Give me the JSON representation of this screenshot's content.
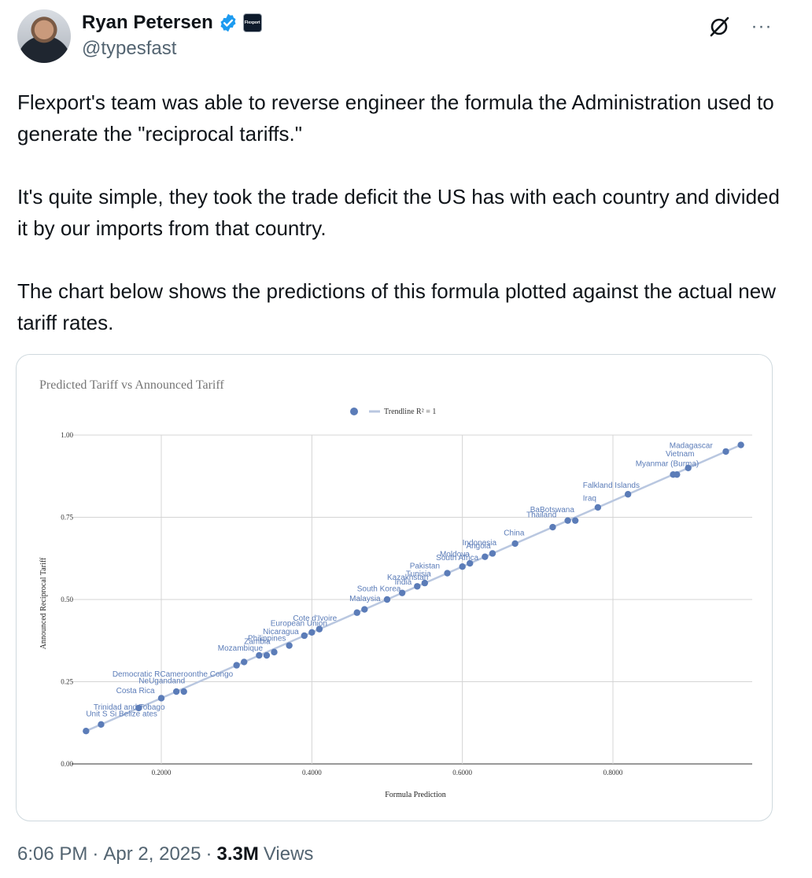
{
  "author": {
    "display_name": "Ryan Petersen",
    "handle": "@typesfast",
    "affiliate_label": "Flexport"
  },
  "header_actions": {
    "grok_icon": "grok-icon",
    "more_label": "···"
  },
  "tweet": {
    "paragraphs": [
      "Flexport's team was able to reverse engineer the formula the Administration used to generate the \"reciprocal tariffs.\"",
      "It's quite simple, they took the trade deficit the US has with each country and divided it by our imports from that country.",
      "The chart below shows the predictions of this formula  plotted against the actual new tariff rates."
    ]
  },
  "footer": {
    "time": "6:06 PM",
    "sep1": "·",
    "date": "Apr 2, 2025",
    "sep2": "·",
    "views_count": "3.3M",
    "views_label": "Views"
  },
  "colors": {
    "point": "#5b7cb8",
    "trendline": "#b9c7e0",
    "grid": "#d4d4d4",
    "label": "#5b7cb8"
  },
  "chart_data": {
    "type": "scatter",
    "title": "Predicted Tariff vs Announced Tariff",
    "xlabel": "Formula Prediction",
    "ylabel": "Announced Reciprocal Tariff",
    "legend": [
      "",
      "Trendline R² = 1"
    ],
    "legend_position": "top",
    "xlim": [
      0.1,
      0.97
    ],
    "ylim": [
      0,
      1
    ],
    "xticks": [
      "0.2000",
      "0.4000",
      "0.6000",
      "0.8000"
    ],
    "xtick_values": [
      0.2,
      0.4,
      0.6,
      0.8
    ],
    "yticks": [
      "0.00",
      "0.25",
      "0.50",
      "0.75",
      "1.00"
    ],
    "ytick_values": [
      0,
      0.25,
      0.5,
      0.75,
      1.0
    ],
    "grid": true,
    "points": [
      {
        "x": 0.1,
        "y": 0.1
      },
      {
        "x": 0.12,
        "y": 0.12
      },
      {
        "x": 0.17,
        "y": 0.17
      },
      {
        "x": 0.2,
        "y": 0.2
      },
      {
        "x": 0.22,
        "y": 0.22
      },
      {
        "x": 0.23,
        "y": 0.22
      },
      {
        "x": 0.3,
        "y": 0.3
      },
      {
        "x": 0.31,
        "y": 0.31
      },
      {
        "x": 0.33,
        "y": 0.33
      },
      {
        "x": 0.34,
        "y": 0.33
      },
      {
        "x": 0.35,
        "y": 0.34
      },
      {
        "x": 0.37,
        "y": 0.36
      },
      {
        "x": 0.39,
        "y": 0.39
      },
      {
        "x": 0.4,
        "y": 0.4
      },
      {
        "x": 0.41,
        "y": 0.41
      },
      {
        "x": 0.46,
        "y": 0.46
      },
      {
        "x": 0.47,
        "y": 0.47
      },
      {
        "x": 0.5,
        "y": 0.5
      },
      {
        "x": 0.52,
        "y": 0.52
      },
      {
        "x": 0.54,
        "y": 0.54
      },
      {
        "x": 0.55,
        "y": 0.55
      },
      {
        "x": 0.58,
        "y": 0.58
      },
      {
        "x": 0.6,
        "y": 0.6
      },
      {
        "x": 0.61,
        "y": 0.61
      },
      {
        "x": 0.63,
        "y": 0.63
      },
      {
        "x": 0.64,
        "y": 0.64
      },
      {
        "x": 0.67,
        "y": 0.67
      },
      {
        "x": 0.72,
        "y": 0.72
      },
      {
        "x": 0.74,
        "y": 0.74
      },
      {
        "x": 0.75,
        "y": 0.74
      },
      {
        "x": 0.78,
        "y": 0.78
      },
      {
        "x": 0.82,
        "y": 0.82
      },
      {
        "x": 0.88,
        "y": 0.88
      },
      {
        "x": 0.885,
        "y": 0.88
      },
      {
        "x": 0.9,
        "y": 0.9
      },
      {
        "x": 0.95,
        "y": 0.95
      },
      {
        "x": 0.97,
        "y": 0.97
      }
    ],
    "labels": [
      {
        "text": "Unit S Si Belize ates",
        "x": 0.1,
        "y": 0.145
      },
      {
        "text": "Trinidad and Tobago",
        "x": 0.11,
        "y": 0.165
      },
      {
        "text": "Costa Rica",
        "x": 0.14,
        "y": 0.215
      },
      {
        "text": "NeUgandand",
        "x": 0.17,
        "y": 0.245
      },
      {
        "text": "Democratic RCameroonthe Congo",
        "x": 0.135,
        "y": 0.265
      },
      {
        "text": "Mozambique",
        "x": 0.275,
        "y": 0.345
      },
      {
        "text": "Zambia",
        "x": 0.31,
        "y": 0.365
      },
      {
        "text": "Philippines",
        "x": 0.315,
        "y": 0.375
      },
      {
        "text": "Nicaragua",
        "x": 0.335,
        "y": 0.395
      },
      {
        "text": "European Union",
        "x": 0.345,
        "y": 0.42
      },
      {
        "text": "Cote d'Ivoire",
        "x": 0.375,
        "y": 0.435
      },
      {
        "text": "Malaysia",
        "x": 0.45,
        "y": 0.495
      },
      {
        "text": "South Korea",
        "x": 0.46,
        "y": 0.525
      },
      {
        "text": "India",
        "x": 0.51,
        "y": 0.545
      },
      {
        "text": "Kazakhstan",
        "x": 0.5,
        "y": 0.56
      },
      {
        "text": "Tunisia",
        "x": 0.525,
        "y": 0.57
      },
      {
        "text": "Pakistan",
        "x": 0.53,
        "y": 0.595
      },
      {
        "text": "South Africa",
        "x": 0.565,
        "y": 0.62
      },
      {
        "text": "Moldova",
        "x": 0.57,
        "y": 0.63
      },
      {
        "text": "Angola",
        "x": 0.605,
        "y": 0.655
      },
      {
        "text": "Indonesia",
        "x": 0.6,
        "y": 0.665
      },
      {
        "text": "China",
        "x": 0.655,
        "y": 0.695
      },
      {
        "text": "Thailand",
        "x": 0.685,
        "y": 0.75
      },
      {
        "text": "BaBotswana",
        "x": 0.69,
        "y": 0.765
      },
      {
        "text": "Iraq",
        "x": 0.76,
        "y": 0.8
      },
      {
        "text": "Falkland Islands",
        "x": 0.76,
        "y": 0.84
      },
      {
        "text": "Myanmar (Burma)",
        "x": 0.83,
        "y": 0.905
      },
      {
        "text": "Vietnam",
        "x": 0.87,
        "y": 0.935
      },
      {
        "text": "Madagascar",
        "x": 0.875,
        "y": 0.96
      }
    ]
  }
}
